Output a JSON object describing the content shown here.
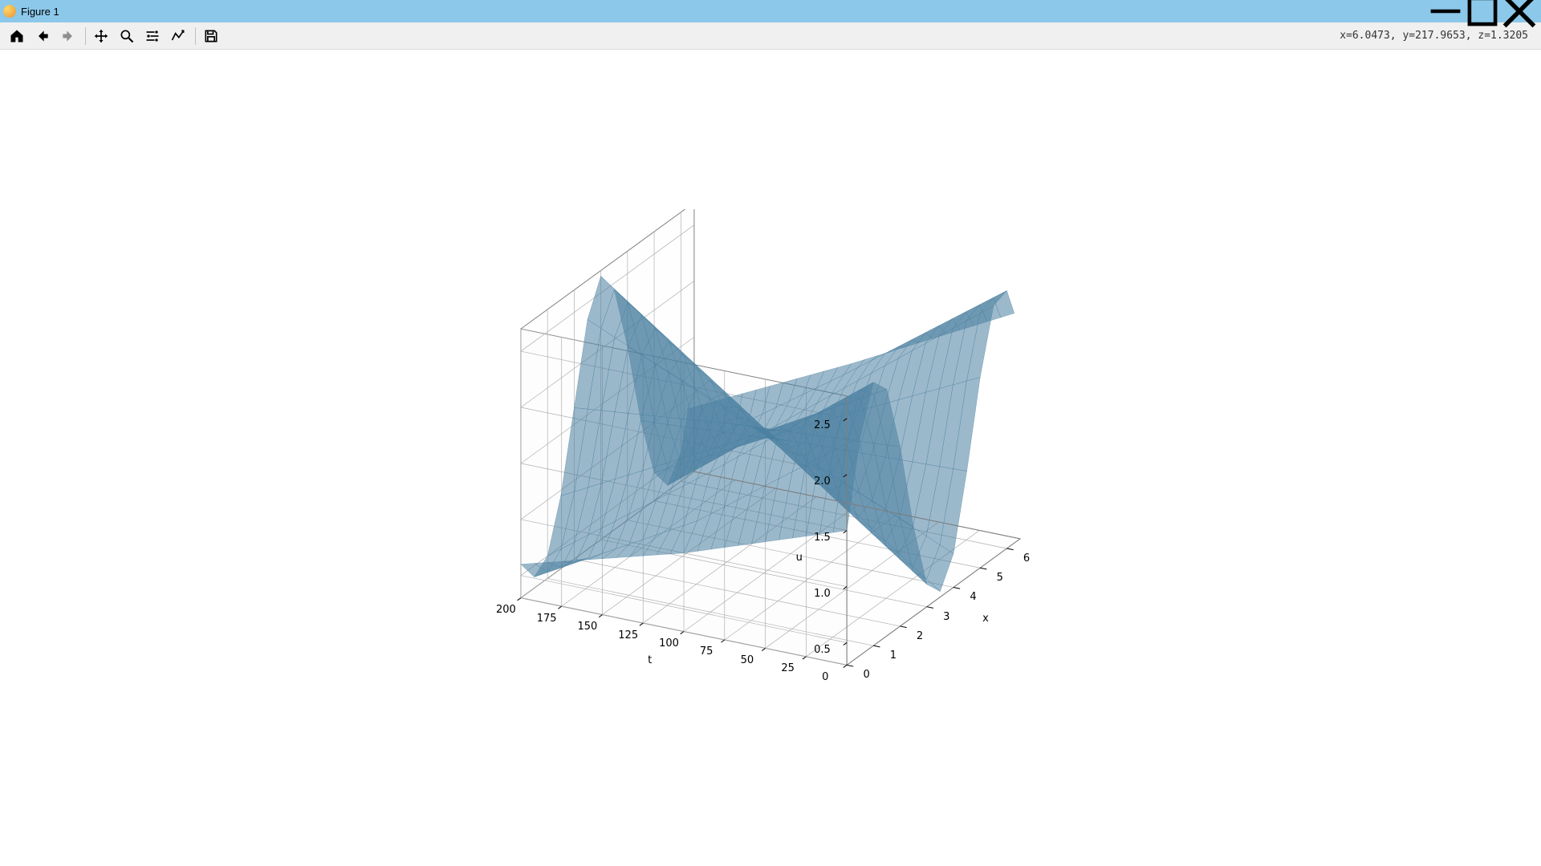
{
  "window": {
    "title": "Figure 1",
    "min_tooltip": "Minimize",
    "max_tooltip": "Maximize",
    "close_tooltip": "Close"
  },
  "toolbar": {
    "home": "Home",
    "back": "Back",
    "forward": "Forward",
    "pan": "Pan",
    "zoom": "Zoom",
    "subplots": "Configure subplots",
    "edit": "Edit axis",
    "save": "Save",
    "coords": "x=6.0473, y=217.9653, z=1.3205"
  },
  "plot": {
    "type": "3d-surface",
    "xlabel": "x",
    "ylabel": "t",
    "zlabel": "u",
    "x_range": [
      0,
      6.5
    ],
    "t_range": [
      0,
      200
    ],
    "z_range": [
      0.3,
      2.7
    ],
    "x_ticks": [
      0,
      1,
      2,
      3,
      4,
      5,
      6
    ],
    "t_ticks": [
      0,
      25,
      50,
      75,
      100,
      125,
      150,
      175,
      200
    ],
    "z_ticks": [
      0.5,
      1.0,
      1.5,
      2.0,
      2.5
    ],
    "z_tick_labels": [
      "0.5",
      "1.0",
      "1.5",
      "2.0",
      "2.5"
    ],
    "tick_fontsize": 13,
    "label_fontsize": 13,
    "surface_color": "#4a80a0",
    "surface_opacity": 0.55,
    "grid_color": "#b0b0b0",
    "pane_edge_color": "#808080",
    "pane_fill": "#f5f5f5",
    "background_color": "#ffffff",
    "elev": 28,
    "azim": -62,
    "profile_t0": {
      "x": [
        0.0,
        0.5,
        1.0,
        1.5,
        2.0,
        2.5,
        3.0,
        3.5,
        4.0,
        4.5,
        5.0,
        5.5,
        6.0,
        6.28
      ],
      "u": [
        1.5,
        2.25,
        2.65,
        2.5,
        1.9,
        1.1,
        0.5,
        0.35,
        0.6,
        1.25,
        2.0,
        2.55,
        2.6,
        2.35
      ]
    },
    "profile_t200": {
      "x": [
        0.0,
        0.5,
        1.0,
        1.5,
        2.0,
        2.5,
        3.0,
        3.5,
        4.0,
        4.5,
        5.0,
        5.5,
        6.0,
        6.28
      ],
      "u": [
        0.6,
        0.4,
        0.5,
        0.95,
        1.65,
        2.35,
        2.65,
        2.45,
        1.85,
        1.1,
        0.55,
        0.35,
        0.55,
        0.9
      ]
    },
    "profile_mid": {
      "x": [
        0.0,
        0.5,
        1.0,
        1.5,
        2.0,
        2.5,
        3.0,
        3.5,
        4.0,
        4.5,
        5.0,
        5.5,
        6.0,
        6.28
      ],
      "u": [
        1.0,
        1.2,
        1.55,
        1.7,
        1.8,
        1.7,
        1.55,
        1.4,
        1.25,
        1.2,
        1.3,
        1.45,
        1.55,
        1.6
      ]
    }
  }
}
